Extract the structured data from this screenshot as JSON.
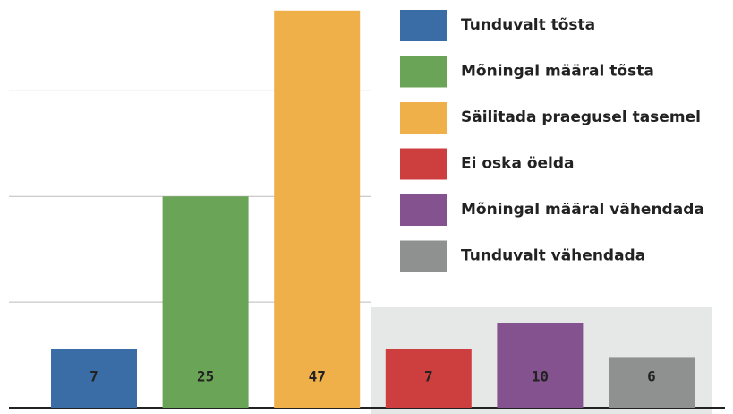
{
  "chart_data": {
    "type": "bar",
    "categories": [
      "Tunduvalt tõsta",
      "Mõningal määral tõsta",
      "Säilitada praegusel tasemel",
      "Ei oska öelda",
      "Mõningal määral vähendada",
      "Tunduvalt vähendada"
    ],
    "values": [
      7,
      25,
      47,
      7,
      10,
      6
    ],
    "colors": [
      "#3a6ca5",
      "#6aa457",
      "#efb04a",
      "#cd3f3e",
      "#84528e",
      "#8f9090"
    ],
    "ylim": [
      0,
      50
    ],
    "yticks": [
      0,
      12.5,
      25,
      37.5
    ],
    "grid": true
  }
}
